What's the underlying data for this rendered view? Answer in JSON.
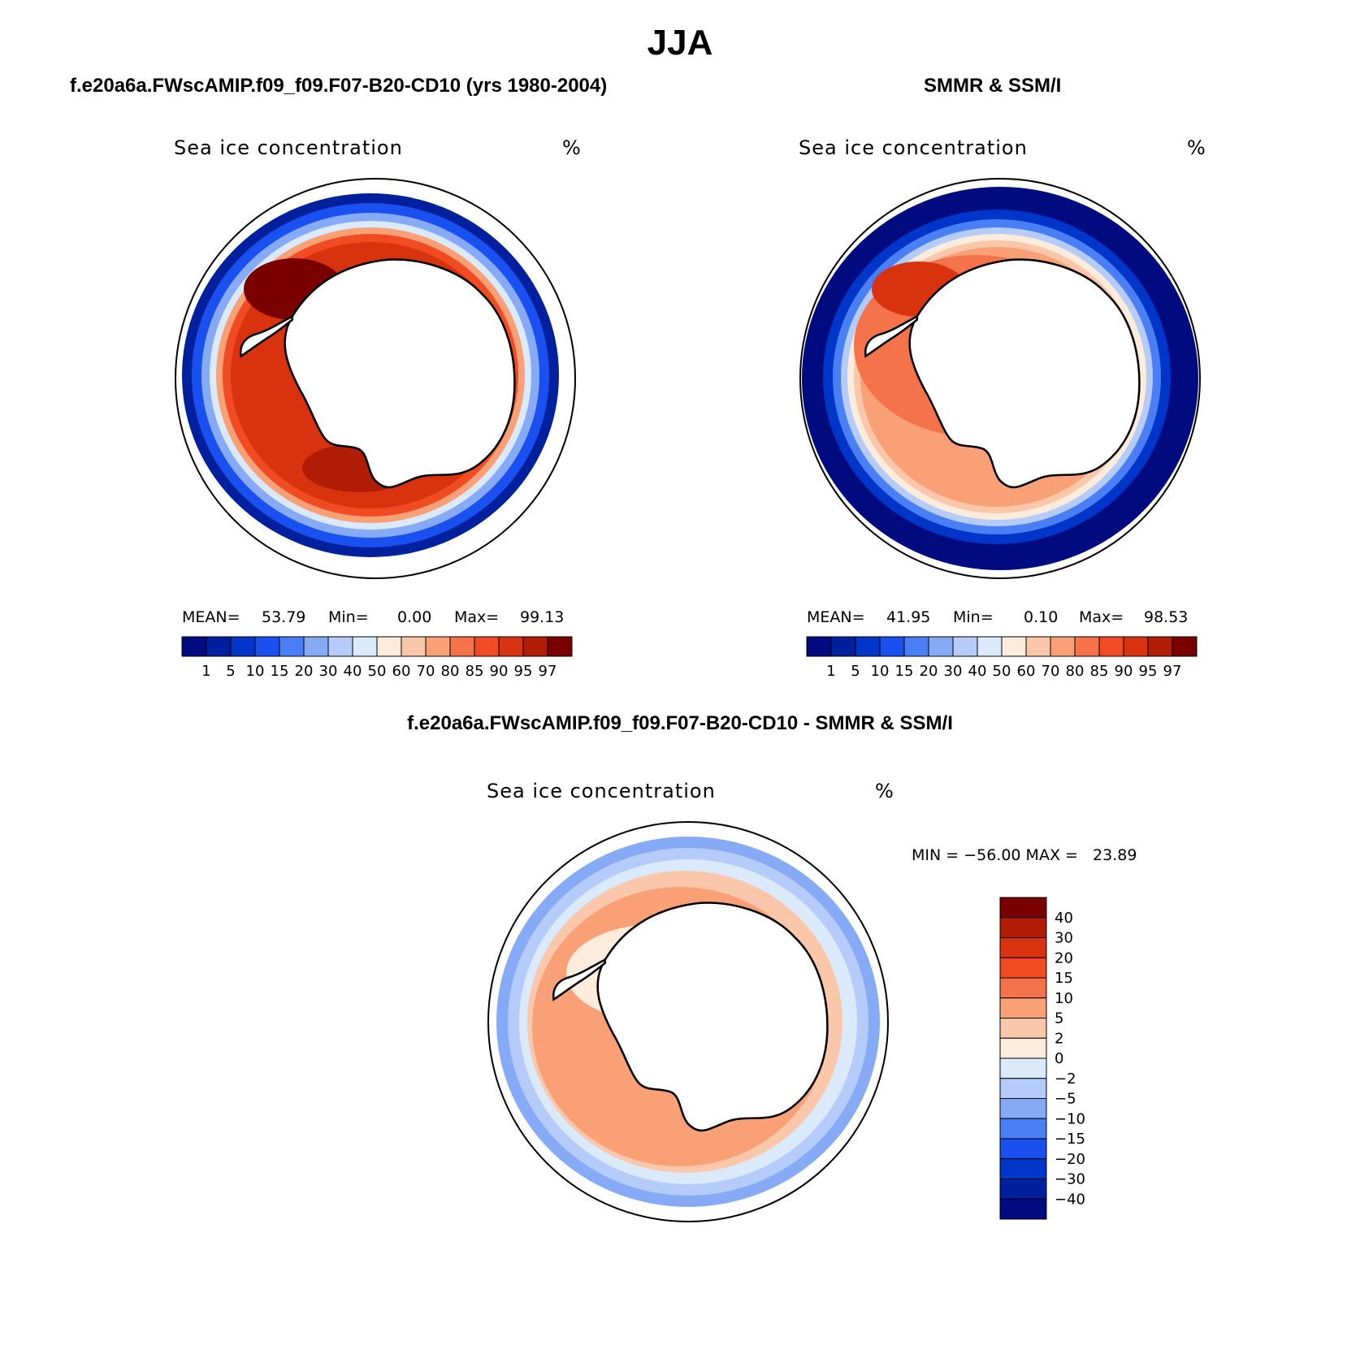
{
  "figure": {
    "season": "JJA",
    "left_panel": {
      "title": "f.e20a6a.FWscAMIP.f09_f09.F07-B20-CD10 (yrs 1980-2004)",
      "variable": "Sea ice concentration",
      "units": "%",
      "mean_label": "MEAN=",
      "mean": "53.79",
      "min_label": "Min=",
      "min": "0.00",
      "max_label": "Max=",
      "max": "99.13"
    },
    "right_panel": {
      "title": "SMMR & SSM/I",
      "variable": "Sea ice concentration",
      "units": "%",
      "mean_label": "MEAN=",
      "mean": "41.95",
      "min_label": "Min=",
      "min": "0.10",
      "max_label": "Max=",
      "max": "98.53"
    },
    "diff_panel": {
      "title": "f.e20a6a.FWscAMIP.f09_f09.F07-B20-CD10 - SMMR & SSM/I",
      "variable": "Sea ice concentration",
      "units": "%",
      "minmax": "MIN = −56.00 MAX =   23.89"
    }
  },
  "chart_data": [
    {
      "type": "heatmap",
      "projection": "south polar stereographic",
      "title": "f.e20a6a.FWscAMIP.f09_f09.F07-B20-CD10 (yrs 1980-2004)",
      "variable": "Sea ice concentration (%)",
      "mean": 53.79,
      "min": 0.0,
      "max": 99.13,
      "levels": [
        1,
        5,
        10,
        15,
        20,
        30,
        40,
        50,
        60,
        70,
        80,
        85,
        90,
        95,
        97
      ],
      "level_labels": [
        "1",
        "5",
        "10",
        "15",
        "20",
        "30",
        "40",
        "50",
        "60",
        "70",
        "80",
        "85",
        "90",
        "95",
        "97"
      ],
      "colors": [
        "#000b80",
        "#00209d",
        "#0035c9",
        "#1a50f0",
        "#4a7ef5",
        "#87aaf7",
        "#b5cbf9",
        "#daeafb",
        "#fdebdb",
        "#fbc7aa",
        "#f9a076",
        "#f5734a",
        "#f04b22",
        "#d9320e",
        "#b01c06",
        "#7a0000"
      ]
    },
    {
      "type": "heatmap",
      "projection": "south polar stereographic",
      "title": "SMMR & SSM/I",
      "variable": "Sea ice concentration (%)",
      "mean": 41.95,
      "min": 0.1,
      "max": 98.53,
      "levels": [
        1,
        5,
        10,
        15,
        20,
        30,
        40,
        50,
        60,
        70,
        80,
        85,
        90,
        95,
        97
      ],
      "level_labels": [
        "1",
        "5",
        "10",
        "15",
        "20",
        "30",
        "40",
        "50",
        "60",
        "70",
        "80",
        "85",
        "90",
        "95",
        "97"
      ],
      "colors": [
        "#000b80",
        "#00209d",
        "#0035c9",
        "#1a50f0",
        "#4a7ef5",
        "#87aaf7",
        "#b5cbf9",
        "#daeafb",
        "#fdebdb",
        "#fbc7aa",
        "#f9a076",
        "#f5734a",
        "#f04b22",
        "#d9320e",
        "#b01c06",
        "#7a0000"
      ]
    },
    {
      "type": "heatmap",
      "projection": "south polar stereographic",
      "title": "f.e20a6a.FWscAMIP.f09_f09.F07-B20-CD10 - SMMR & SSM/I",
      "variable": "Sea ice concentration difference (%)",
      "min": -56.0,
      "max": 23.89,
      "levels": [
        40,
        30,
        20,
        15,
        10,
        5,
        2,
        0,
        -2,
        -5,
        -10,
        -15,
        -20,
        -30,
        -40
      ],
      "level_labels": [
        "40",
        "30",
        "20",
        "15",
        "10",
        "5",
        "2",
        "0",
        "−2",
        "−5",
        "−10",
        "−15",
        "−20",
        "−30",
        "−40"
      ],
      "colors": [
        "#7a0000",
        "#b01c06",
        "#d9320e",
        "#f04b22",
        "#f5734a",
        "#f9a076",
        "#fbc7aa",
        "#fdebdb",
        "#daeafb",
        "#b5cbf9",
        "#87aaf7",
        "#4a7ef5",
        "#1a50f0",
        "#0035c9",
        "#00209d",
        "#000b80"
      ]
    }
  ]
}
